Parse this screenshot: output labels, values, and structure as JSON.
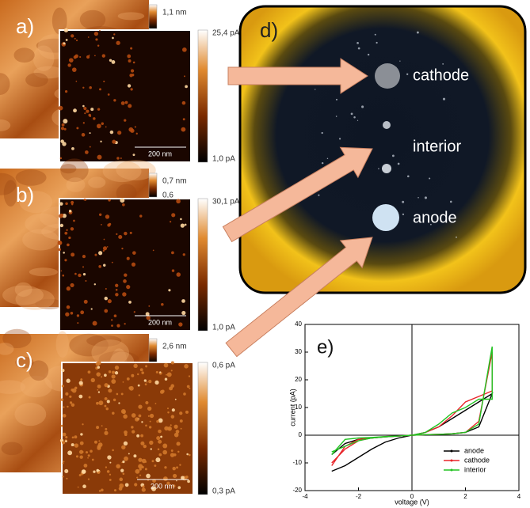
{
  "afm_panels": [
    {
      "label": "a)",
      "topo_labels": [
        "1,1 nm"
      ],
      "current_max": "25,4 pA",
      "current_min": "1,0 pA",
      "scale_bar": "200 nm"
    },
    {
      "label": "b)",
      "topo_labels": [
        "0,7 nm",
        "0,6"
      ],
      "current_max": "30,1 pA",
      "current_min": "1,0 pA",
      "scale_bar": "200 nm"
    },
    {
      "label": "c)",
      "topo_labels": [
        "2,6 nm"
      ],
      "current_max": "0,6 pA",
      "current_min": "0,3 pA",
      "scale_bar": "200 nm"
    }
  ],
  "photo": {
    "label": "d)",
    "sites": [
      "cathode",
      "interior",
      "anode"
    ]
  },
  "chart_data": {
    "type": "line",
    "label": "e)",
    "x_label": "voltage (V)",
    "y_label": "current (pA)",
    "x": [
      -3,
      -2.5,
      -2,
      -1.5,
      -1,
      -0.5,
      0,
      0.5,
      1,
      1.5,
      2,
      2.5,
      3,
      3,
      2.5,
      2,
      1.5,
      1,
      0.5,
      0,
      -0.5,
      -1,
      -1.5,
      -2,
      -2.5,
      -3
    ],
    "series": [
      {
        "name": "anode",
        "color": "#000000",
        "values": [
          -13,
          -11,
          -8,
          -5,
          -2.5,
          -1,
          0,
          1,
          3,
          6,
          9,
          12,
          15,
          15,
          3,
          1,
          0.5,
          0.3,
          0.2,
          0,
          -0.3,
          -0.6,
          -1,
          -1.5,
          -3,
          -7
        ]
      },
      {
        "name": "cathode",
        "color": "#e8252a",
        "values": [
          -11,
          -4,
          -1.5,
          -1,
          -0.5,
          -0.3,
          0,
          1,
          3,
          7,
          12,
          14,
          16,
          30,
          5,
          1,
          0.5,
          0.3,
          0.2,
          0,
          -0.3,
          -0.6,
          -1,
          -2,
          -5,
          -10
        ]
      },
      {
        "name": "interior",
        "color": "#22c322",
        "values": [
          -7,
          -1.5,
          -1,
          -0.8,
          -0.5,
          -0.3,
          0,
          1,
          4,
          8,
          10,
          13,
          13,
          32,
          4,
          1,
          0.5,
          0.3,
          0.2,
          0,
          -0.3,
          -0.6,
          -1,
          -2,
          -4,
          -6
        ]
      }
    ],
    "xlim": [
      -4,
      4
    ],
    "xticks": [
      -4,
      -2,
      0,
      2,
      4
    ],
    "ylim": [
      -20,
      40
    ],
    "yticks": [
      -20,
      -10,
      0,
      10,
      20,
      30,
      40
    ],
    "legend": "lower right"
  }
}
